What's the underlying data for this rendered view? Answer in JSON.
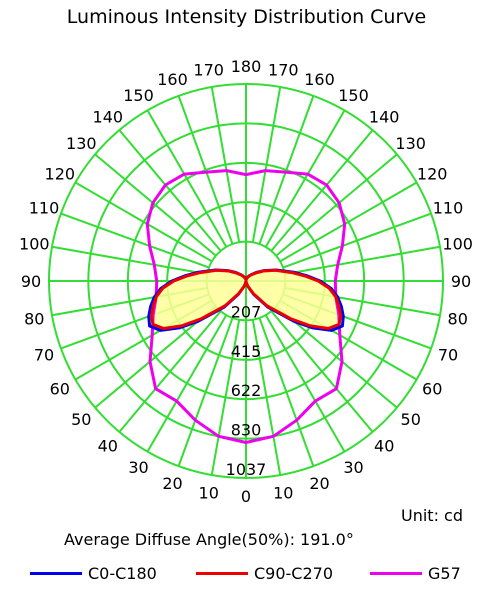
{
  "chart_data": {
    "type": "polar",
    "title": "Luminous Intensity Distribution Curve",
    "unit_label": "Unit: cd",
    "average_diffuse_angle_label": "Average Diffuse Angle(50%): 191.0°",
    "radial_ticks": [
      "207",
      "415",
      "622",
      "830",
      "1037"
    ],
    "radial_max": 1037,
    "angle_labels": [
      "0",
      "10",
      "20",
      "30",
      "40",
      "50",
      "60",
      "70",
      "80",
      "90",
      "100",
      "110",
      "120",
      "130",
      "140",
      "150",
      "160",
      "170",
      "180"
    ],
    "grid_color": "#33dd33",
    "fill_color": "#ffff99",
    "series": [
      {
        "name": "C0-C180",
        "color": "#0000ee",
        "angles": [
          0,
          10,
          20,
          30,
          40,
          50,
          55,
          60,
          65,
          70,
          75,
          80,
          85,
          90,
          95,
          100,
          110,
          120,
          130,
          140,
          150,
          160,
          170,
          180
        ],
        "values": [
          0,
          10,
          30,
          80,
          180,
          330,
          430,
          520,
          560,
          545,
          520,
          490,
          450,
          390,
          320,
          260,
          170,
          110,
          70,
          45,
          30,
          20,
          12,
          8
        ]
      },
      {
        "name": "C90-C270",
        "color": "#ee0000",
        "angles": [
          0,
          10,
          20,
          30,
          40,
          50,
          55,
          60,
          65,
          70,
          75,
          80,
          85,
          90,
          95,
          100,
          110,
          120,
          130,
          140,
          150,
          160,
          170,
          180
        ],
        "values": [
          0,
          10,
          30,
          75,
          170,
          310,
          410,
          500,
          540,
          530,
          505,
          480,
          440,
          380,
          310,
          250,
          165,
          105,
          65,
          42,
          28,
          18,
          10,
          8
        ]
      },
      {
        "name": "G57",
        "color": "#ee00ee",
        "angles": [
          0,
          10,
          20,
          30,
          40,
          50,
          60,
          70,
          80,
          90,
          100,
          110,
          120,
          130,
          140,
          150,
          160,
          170,
          180
        ],
        "values": [
          850,
          830,
          780,
          730,
          740,
          660,
          570,
          520,
          480,
          470,
          490,
          540,
          600,
          640,
          660,
          650,
          610,
          590,
          560
        ]
      }
    ]
  }
}
